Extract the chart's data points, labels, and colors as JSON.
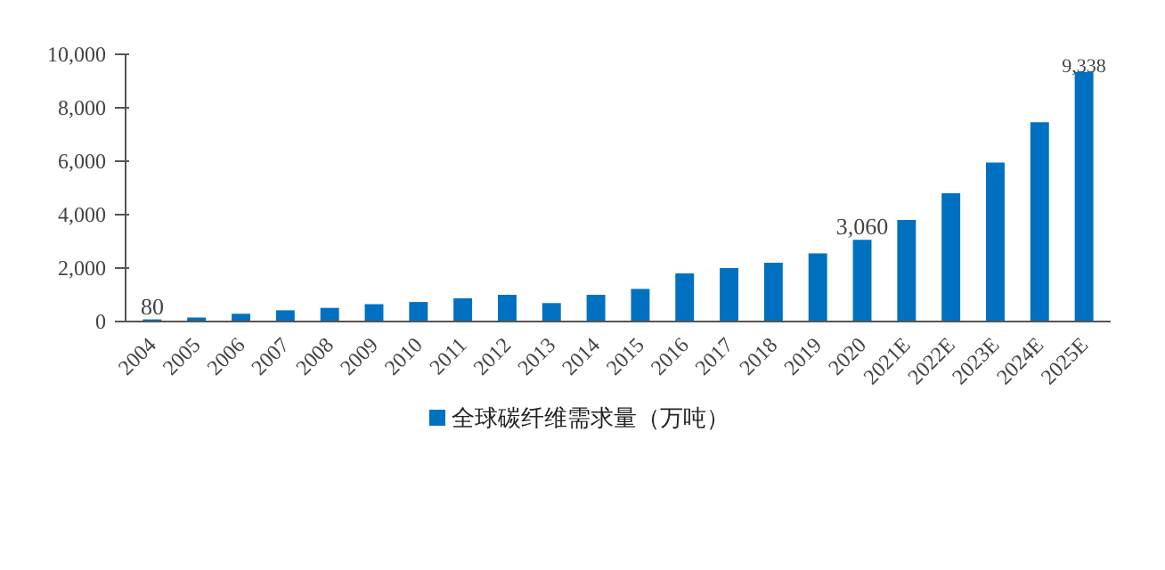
{
  "chart_data": {
    "type": "bar",
    "categories": [
      "2004",
      "2005",
      "2006",
      "2007",
      "2008",
      "2009",
      "2010",
      "2011",
      "2012",
      "2013",
      "2014",
      "2015",
      "2016",
      "2017",
      "2018",
      "2019",
      "2020",
      "2021E",
      "2022E",
      "2023E",
      "2024E",
      "2025E"
    ],
    "series": [
      {
        "name": "全球碳纤维需求量（万吨）",
        "color": "#0070c0",
        "values": [
          80,
          150,
          290,
          420,
          510,
          650,
          730,
          870,
          1000,
          690,
          1000,
          1220,
          1800,
          2000,
          2200,
          2550,
          3060,
          3800,
          4800,
          5950,
          7460,
          9338
        ],
        "value_labels": [
          "80",
          null,
          null,
          null,
          null,
          null,
          null,
          null,
          null,
          null,
          null,
          null,
          null,
          null,
          null,
          null,
          "3,060",
          null,
          null,
          null,
          null,
          "9,338"
        ]
      }
    ],
    "ylim": [
      0,
      10000
    ],
    "yticks": [
      0,
      {
        "value": 2000,
        "label": "2,000"
      },
      {
        "value": 4000,
        "label": "4,000"
      },
      {
        "value": 6000,
        "label": "6,000"
      },
      {
        "value": 8000,
        "label": "8,000"
      },
      {
        "value": 10000,
        "label": "10,000"
      }
    ],
    "grid": false,
    "legend": "bottom"
  }
}
